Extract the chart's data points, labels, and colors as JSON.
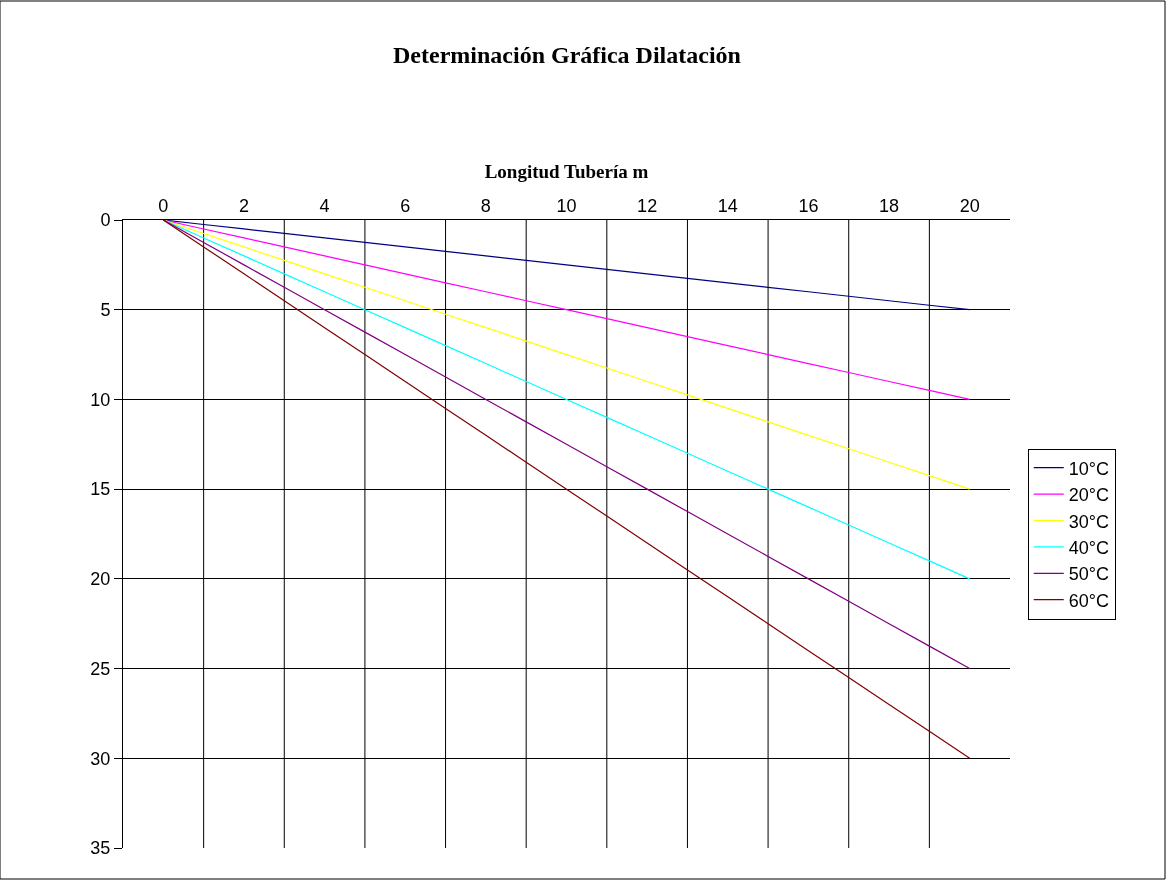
{
  "chart_data": {
    "type": "line",
    "title": "Determinación Gráfica Dilatación",
    "xlabel": "Longitud Tubería m",
    "x": [
      0,
      1,
      2,
      3,
      4,
      5,
      6,
      7,
      8,
      9,
      10,
      11,
      12,
      13,
      14,
      15,
      16,
      17,
      18,
      19,
      20
    ],
    "series": [
      {
        "name": "10°C",
        "color": "#000080",
        "values": [
          0,
          0.25,
          0.5,
          0.75,
          1,
          1.25,
          1.5,
          1.75,
          2,
          2.25,
          2.5,
          2.75,
          3,
          3.25,
          3.5,
          3.75,
          4,
          4.25,
          4.5,
          4.75,
          5
        ]
      },
      {
        "name": "20°C",
        "color": "#ff00ff",
        "values": [
          0,
          0.5,
          1,
          1.5,
          2,
          2.5,
          3,
          3.5,
          4,
          4.5,
          5,
          5.5,
          6,
          6.5,
          7,
          7.5,
          8,
          8.5,
          9,
          9.5,
          10
        ]
      },
      {
        "name": "30°C",
        "color": "#ffff00",
        "values": [
          0,
          0.75,
          1.5,
          2.25,
          3,
          3.75,
          4.5,
          5.25,
          6,
          6.75,
          7.5,
          8.25,
          9,
          9.75,
          10.5,
          11.25,
          12,
          12.75,
          13.5,
          14.25,
          15
        ]
      },
      {
        "name": "40°C",
        "color": "#00ffff",
        "values": [
          0,
          1,
          2,
          3,
          4,
          5,
          6,
          7,
          8,
          9,
          10,
          11,
          12,
          13,
          14,
          15,
          16,
          17,
          18,
          19,
          20
        ]
      },
      {
        "name": "50°C",
        "color": "#800080",
        "values": [
          0,
          1.25,
          2.5,
          3.75,
          5,
          6.25,
          7.5,
          8.75,
          10,
          11.25,
          12.5,
          13.75,
          15,
          16.25,
          17.5,
          18.75,
          20,
          21.25,
          22.5,
          23.75,
          25
        ]
      },
      {
        "name": "60°C",
        "color": "#800000",
        "values": [
          0,
          1.5,
          3,
          4.5,
          6,
          7.5,
          9,
          10.5,
          12,
          13.5,
          15,
          16.5,
          18,
          19.5,
          21,
          22.5,
          24,
          25.5,
          27,
          28.5,
          30
        ]
      }
    ],
    "xlim": [
      -1,
      21
    ],
    "xticks": [
      0,
      {
        "value": 1,
        "label": null
      },
      2,
      {
        "value": 3,
        "label": null
      },
      4,
      {
        "value": 5,
        "label": null
      },
      6,
      {
        "value": 7,
        "label": null
      },
      8,
      {
        "value": 9,
        "label": null
      },
      10,
      {
        "value": 11,
        "label": null
      },
      12,
      {
        "value": 13,
        "label": null
      },
      14,
      {
        "value": 15,
        "label": null
      },
      16,
      {
        "value": 17,
        "label": null
      },
      18,
      {
        "value": 19,
        "label": null
      },
      20
    ],
    "ylim": [
      35,
      0
    ],
    "yticks": [
      0,
      5,
      10,
      15,
      20,
      25,
      30,
      35
    ],
    "grid": true,
    "legend": "right",
    "marker": "none",
    "line_style": "solid"
  }
}
